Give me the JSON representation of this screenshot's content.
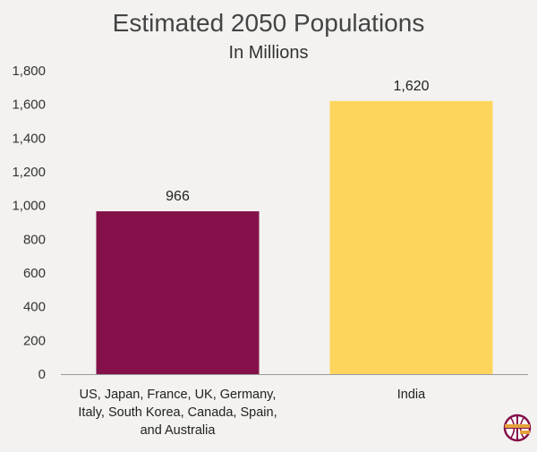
{
  "chart_data": {
    "type": "bar",
    "title": "Estimated 2050 Populations",
    "subtitle": "In Millions",
    "xlabel": "",
    "ylabel": "",
    "ylim": [
      0,
      1800
    ],
    "yticks": [
      0,
      200,
      400,
      600,
      800,
      1000,
      1200,
      1400,
      1600,
      1800
    ],
    "ytick_labels": [
      "0",
      "200",
      "400",
      "600",
      "800",
      "1,000",
      "1,200",
      "1,400",
      "1,600",
      "1,800"
    ],
    "categories": [
      [
        "US, Japan, France, UK, Germany,",
        "Italy, South Korea, Canada, Spain,",
        "and Australia"
      ],
      [
        "India"
      ]
    ],
    "values": [
      966,
      1620
    ],
    "value_labels": [
      "966",
      "1,620"
    ],
    "colors": [
      "#841149",
      "#fed55c"
    ],
    "grid": false,
    "legend": "none"
  },
  "logo": {
    "name": "globe-logo-icon",
    "colors": [
      "#841149",
      "#e4a33a"
    ]
  }
}
